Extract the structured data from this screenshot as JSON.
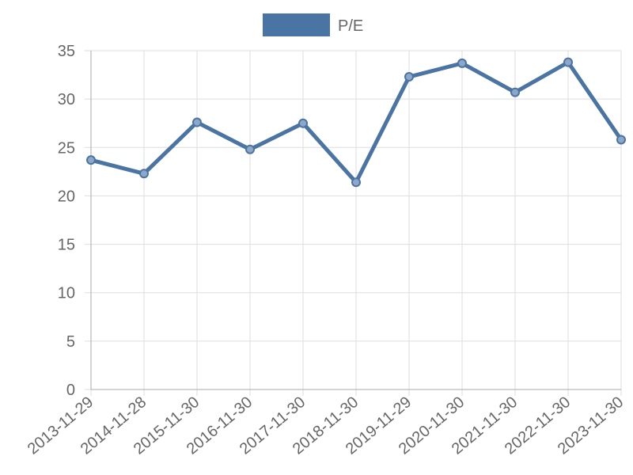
{
  "chart_data": {
    "type": "line",
    "categories": [
      "2013-11-29",
      "2014-11-28",
      "2015-11-30",
      "2016-11-30",
      "2017-11-30",
      "2018-11-30",
      "2019-11-29",
      "2020-11-30",
      "2021-11-30",
      "2022-11-30",
      "2023-11-30"
    ],
    "series": [
      {
        "name": "P/E",
        "color": "#4a74a3",
        "values": [
          23.7,
          22.3,
          27.6,
          24.8,
          27.5,
          21.4,
          32.3,
          33.7,
          30.7,
          33.8,
          25.8
        ]
      }
    ],
    "ylim": [
      0,
      35
    ],
    "yticks": [
      0,
      5,
      10,
      15,
      20,
      25,
      30,
      35
    ],
    "grid": true,
    "legend": "top"
  }
}
